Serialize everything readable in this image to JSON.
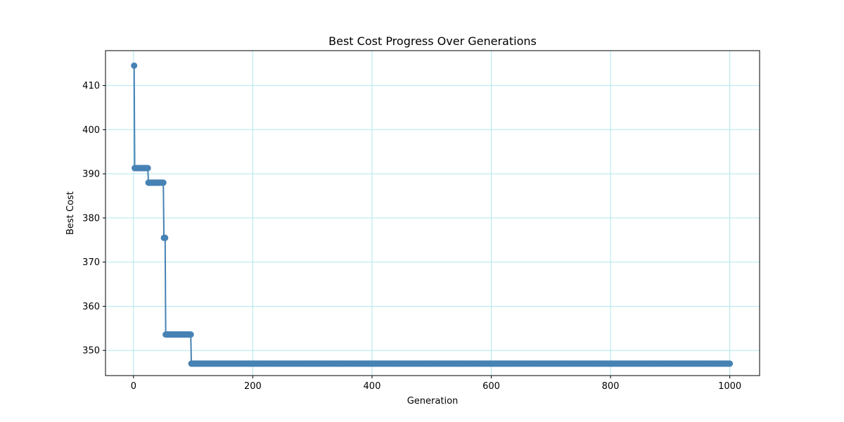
{
  "chart_data": {
    "type": "line",
    "title": "Best Cost Progress Over Generations",
    "xlabel": "Generation",
    "ylabel": "Best Cost",
    "xlim": [
      -47,
      1050
    ],
    "ylim": [
      344.3,
      417.9
    ],
    "xticks": [
      0,
      200,
      400,
      600,
      800,
      1000
    ],
    "yticks": [
      350,
      360,
      370,
      380,
      390,
      400,
      410
    ],
    "grid": true,
    "grid_color": "#b0e8ef",
    "line_color": "#4682b4",
    "marker": "circle",
    "segments": [
      {
        "from": 1,
        "to": 1,
        "value": 414.5
      },
      {
        "from": 2,
        "to": 24,
        "value": 391.3
      },
      {
        "from": 25,
        "to": 50,
        "value": 388.0
      },
      {
        "from": 51,
        "to": 53,
        "value": 375.5
      },
      {
        "from": 54,
        "to": 96,
        "value": 353.6
      },
      {
        "from": 97,
        "to": 1000,
        "value": 347.0
      }
    ]
  }
}
